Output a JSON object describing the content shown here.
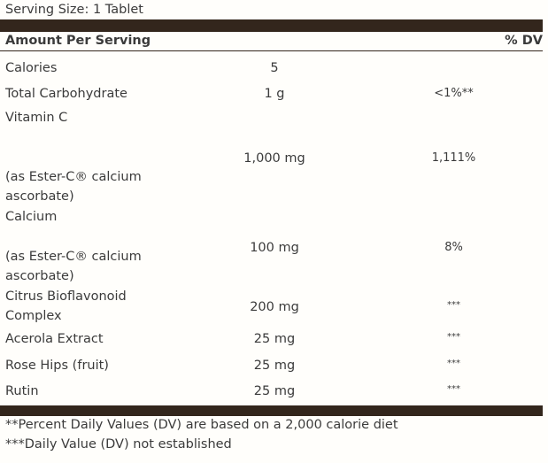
{
  "serving_size": "Serving Size: 1 Tablet",
  "header": {
    "amount": "Amount Per Serving",
    "dv": "% DV"
  },
  "rows": [
    {
      "name": "Calories",
      "amount": "5"
    },
    {
      "name": "Total Carbohydrate",
      "amount": "1 g",
      "dv": "<1%**"
    },
    {
      "name": "Vitamin C",
      "note": "(as Ester-C® calcium ascorbate)",
      "amount": "1,000 mg",
      "dv": "1,111%"
    },
    {
      "name": "Calcium",
      "note": "(as Ester-C® calcium ascorbate)",
      "amount": "100 mg",
      "dv": "8%"
    },
    {
      "name": "Citrus Bioflavonoid Complex",
      "amount": "200 mg",
      "dv": "***"
    },
    {
      "name": "Acerola Extract",
      "amount": "25 mg",
      "dv": "***"
    },
    {
      "name": "Rose Hips (fruit)",
      "amount": "25 mg",
      "dv": "***"
    },
    {
      "name": "Rutin",
      "amount": "25 mg",
      "dv": "***"
    }
  ],
  "footnotes": [
    "**Percent Daily Values (DV) are based on a 2,000 calorie diet",
    "***Daily Value (DV) not established"
  ]
}
